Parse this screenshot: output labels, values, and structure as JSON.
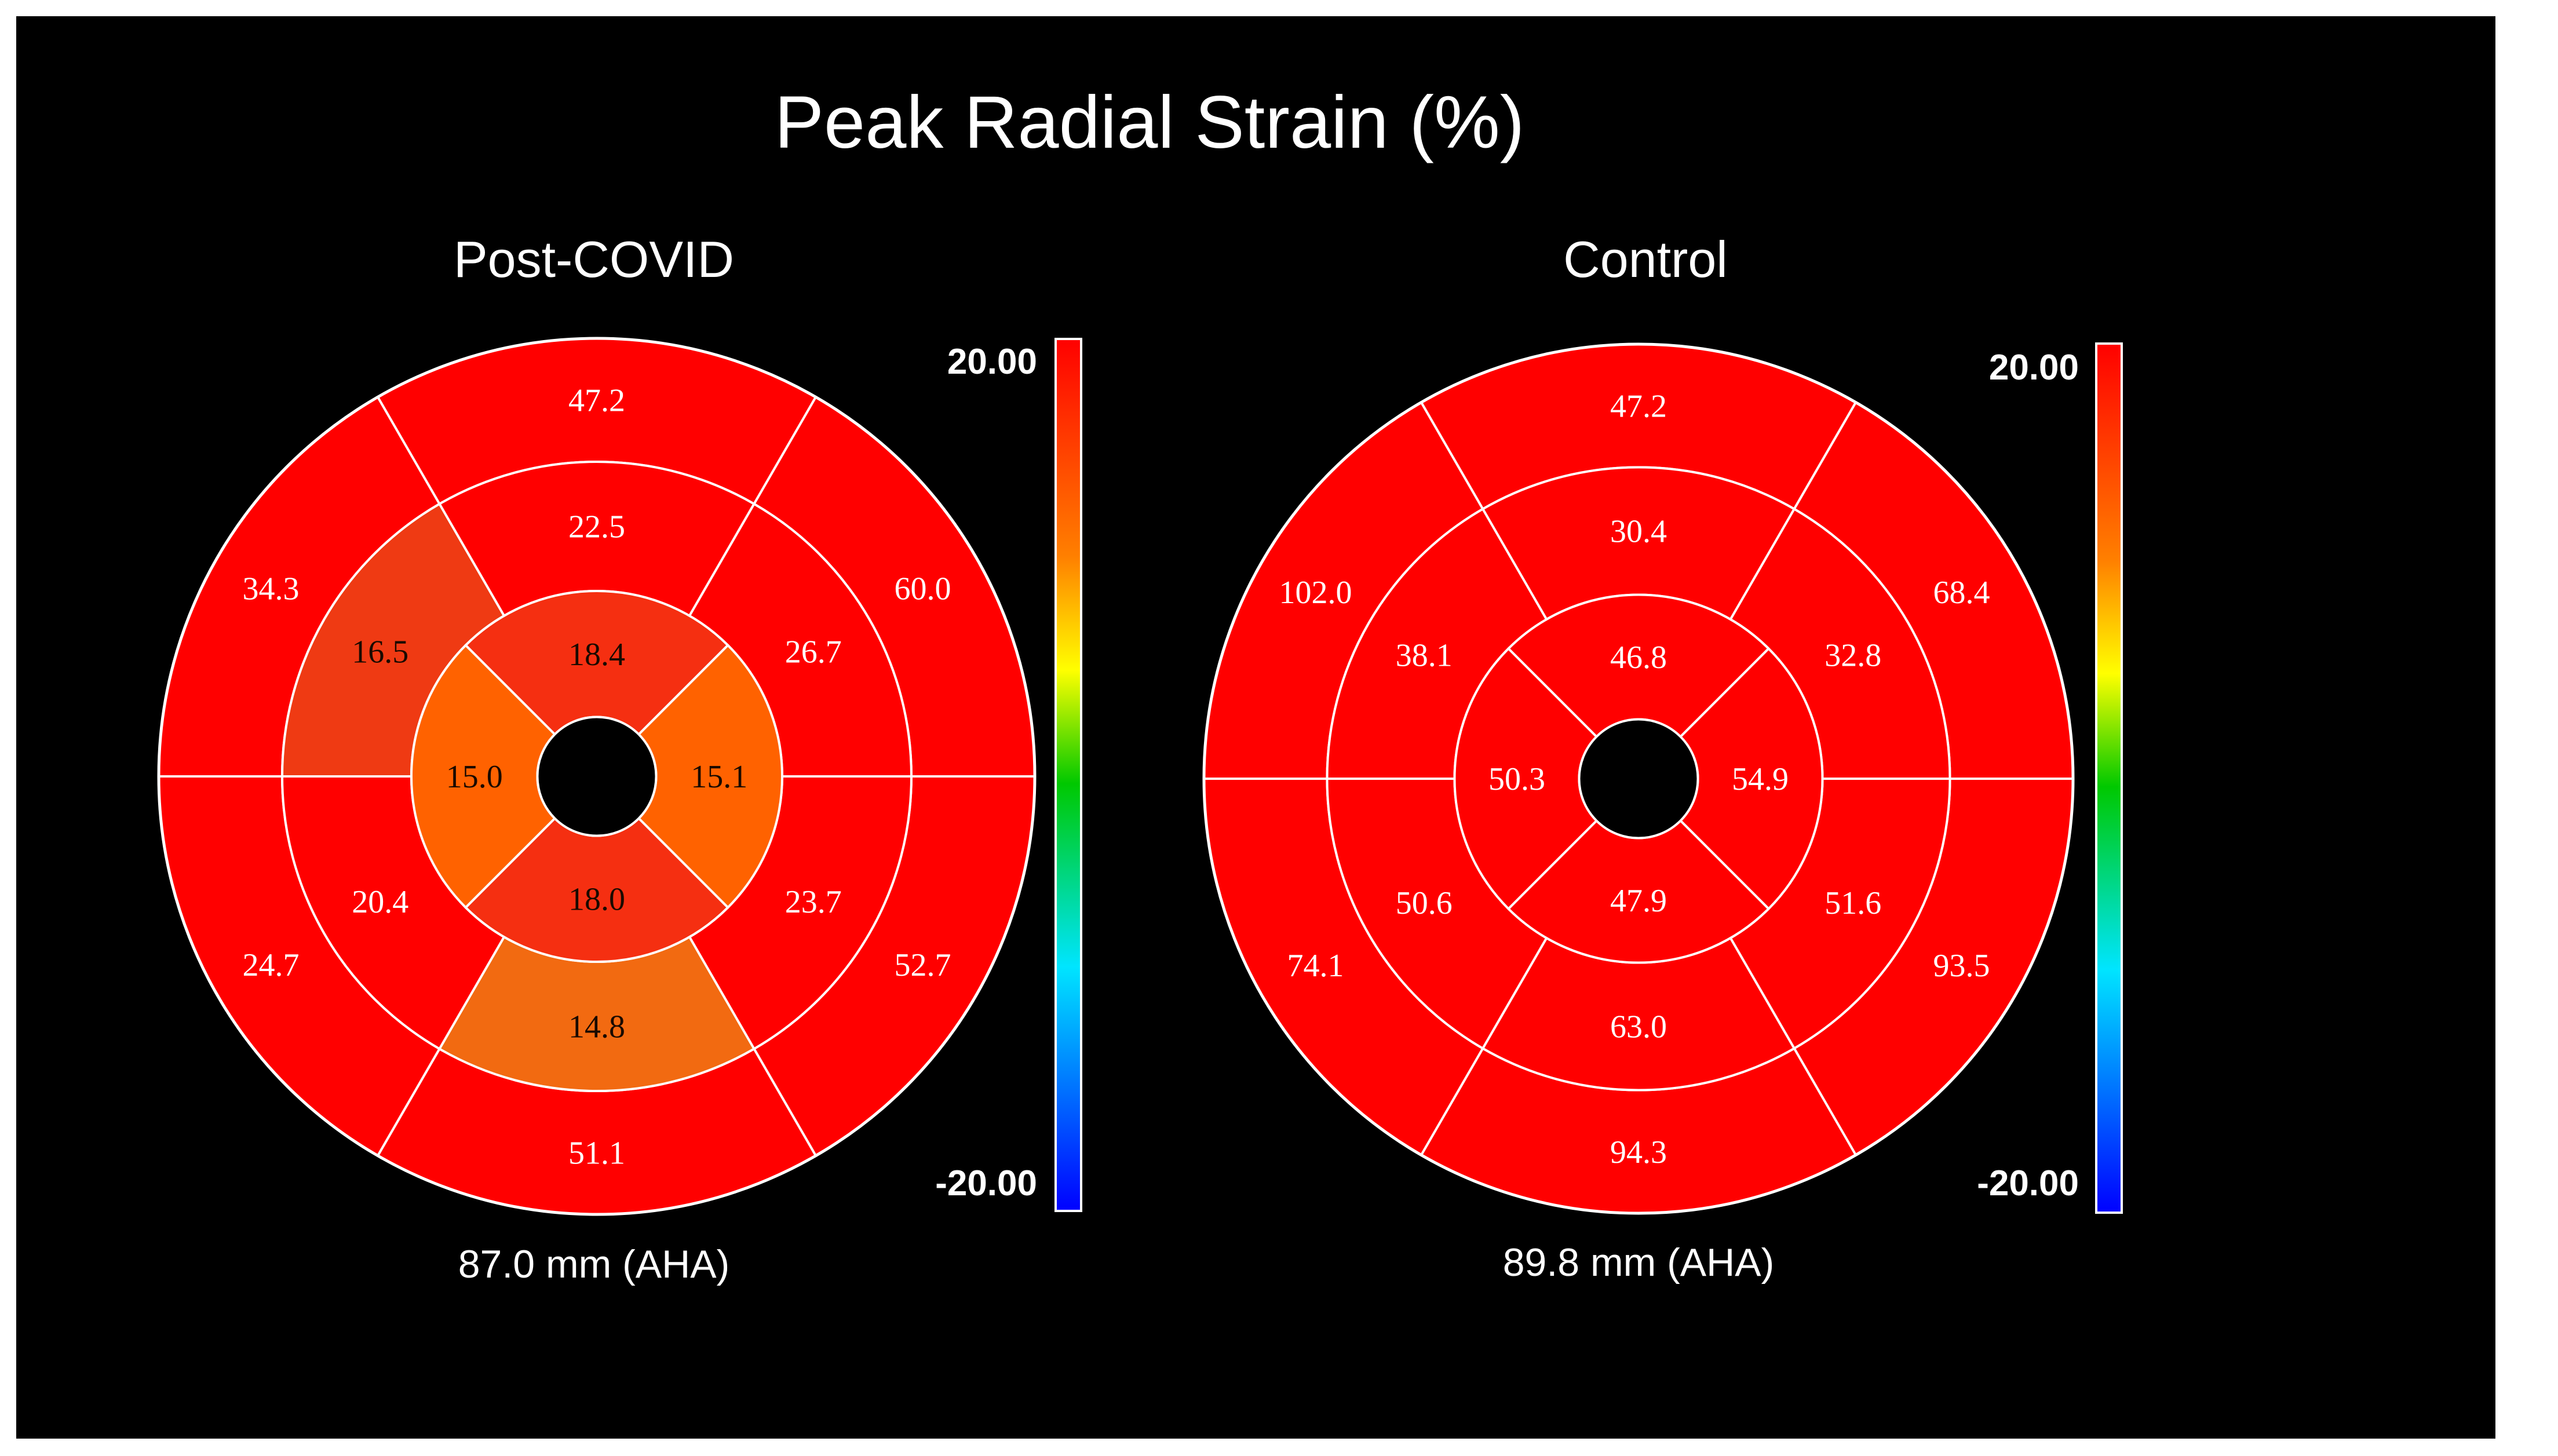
{
  "title": "Peak Radial Strain (%)",
  "panels": [
    {
      "id": "post-covid",
      "title": "Post-COVID",
      "footer": "87.0 mm (AHA)",
      "colorbar": {
        "max_label": "20.00",
        "min_label": "-20.00"
      },
      "segments": {
        "basal": [
          {
            "label": "47.2",
            "color": "#ff0000"
          },
          {
            "label": "60.0",
            "color": "#ff0000"
          },
          {
            "label": "52.7",
            "color": "#ff0000"
          },
          {
            "label": "51.1",
            "color": "#ff0000"
          },
          {
            "label": "24.7",
            "color": "#ff0000"
          },
          {
            "label": "34.3",
            "color": "#ff0000"
          }
        ],
        "mid": [
          {
            "label": "22.5",
            "color": "#ff0000"
          },
          {
            "label": "26.7",
            "color": "#ff0000"
          },
          {
            "label": "23.7",
            "color": "#ff0000"
          },
          {
            "label": "14.8",
            "color": "#f26a11"
          },
          {
            "label": "20.4",
            "color": "#ff0000"
          },
          {
            "label": "16.5",
            "color": "#ef3a13"
          }
        ],
        "apical": [
          {
            "label": "18.4",
            "color": "#f52f11"
          },
          {
            "label": "15.1",
            "color": "#ff6200"
          },
          {
            "label": "18.0",
            "color": "#f52f11"
          },
          {
            "label": "15.0",
            "color": "#ff6200"
          }
        ]
      }
    },
    {
      "id": "control",
      "title": "Control",
      "footer": "89.8 mm (AHA)",
      "colorbar": {
        "max_label": "20.00",
        "min_label": "-20.00"
      },
      "segments": {
        "basal": [
          {
            "label": "47.2",
            "color": "#ff0000"
          },
          {
            "label": "68.4",
            "color": "#ff0000"
          },
          {
            "label": "93.5",
            "color": "#ff0000"
          },
          {
            "label": "94.3",
            "color": "#ff0000"
          },
          {
            "label": "74.1",
            "color": "#ff0000"
          },
          {
            "label": "102.0",
            "color": "#ff0000"
          }
        ],
        "mid": [
          {
            "label": "30.4",
            "color": "#ff0000"
          },
          {
            "label": "32.8",
            "color": "#ff0000"
          },
          {
            "label": "51.6",
            "color": "#ff0000"
          },
          {
            "label": "63.0",
            "color": "#ff0000"
          },
          {
            "label": "50.6",
            "color": "#ff0000"
          },
          {
            "label": "38.1",
            "color": "#ff0000"
          }
        ],
        "apical": [
          {
            "label": "46.8",
            "color": "#ff0000"
          },
          {
            "label": "54.9",
            "color": "#ff0000"
          },
          {
            "label": "47.9",
            "color": "#ff0000"
          },
          {
            "label": "50.3",
            "color": "#ff0000"
          }
        ]
      }
    }
  ],
  "colors": {
    "background": "#000000",
    "border": "#ffffff",
    "divider": "#ffffff",
    "center_hole": "#000000",
    "colorbar_stops": [
      "#ff0000",
      "#ff8000",
      "#ffff00",
      "#00c800",
      "#00e5ff",
      "#0000ff"
    ]
  }
}
